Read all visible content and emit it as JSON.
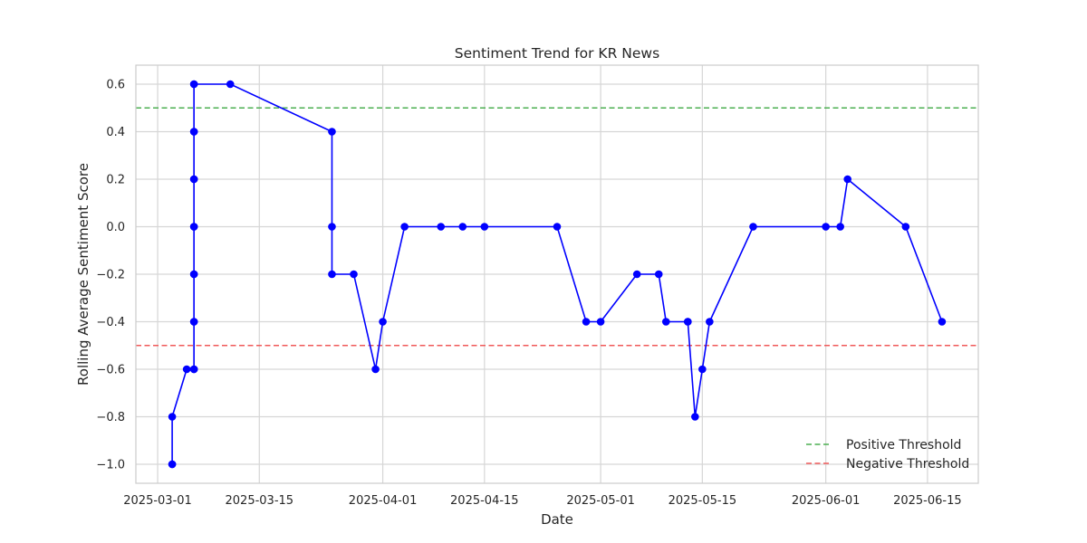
{
  "chart_data": {
    "type": "line",
    "title": "Sentiment Trend for KR News",
    "xlabel": "Date",
    "ylabel": "Rolling Average Sentiment Score",
    "xlim": [
      "2025-02-26",
      "2025-06-22"
    ],
    "ylim": [
      -1.08,
      0.68
    ],
    "x_ticks": [
      "2025-03-01",
      "2025-03-15",
      "2025-04-01",
      "2025-04-15",
      "2025-05-01",
      "2025-05-15",
      "2025-06-01",
      "2025-06-15"
    ],
    "y_ticks": [
      -1.0,
      -0.8,
      -0.6,
      -0.4,
      -0.2,
      0.0,
      0.2,
      0.4,
      0.6
    ],
    "y_tick_labels": [
      "−1.0",
      "−0.8",
      "−0.6",
      "−0.4",
      "−0.2",
      "0.0",
      "0.2",
      "0.4",
      "0.6"
    ],
    "grid": true,
    "legend_position": "lower-right",
    "series": [
      {
        "color": "#0000ff",
        "marker": "circle",
        "points": [
          {
            "x": "2025-03-03",
            "y": -1.0
          },
          {
            "x": "2025-03-03",
            "y": -1.0
          },
          {
            "x": "2025-03-03",
            "y": -0.8
          },
          {
            "x": "2025-03-05",
            "y": -0.6
          },
          {
            "x": "2025-03-06",
            "y": -0.6
          },
          {
            "x": "2025-03-06",
            "y": -0.4
          },
          {
            "x": "2025-03-06",
            "y": -0.2
          },
          {
            "x": "2025-03-06",
            "y": 0.0
          },
          {
            "x": "2025-03-06",
            "y": 0.2
          },
          {
            "x": "2025-03-06",
            "y": 0.4
          },
          {
            "x": "2025-03-06",
            "y": 0.6
          },
          {
            "x": "2025-03-06",
            "y": 0.4
          },
          {
            "x": "2025-03-06",
            "y": 0.2
          },
          {
            "x": "2025-03-06",
            "y": 0.0
          },
          {
            "x": "2025-03-06",
            "y": -0.2
          },
          {
            "x": "2025-03-06",
            "y": -0.4
          },
          {
            "x": "2025-03-06",
            "y": -0.6
          },
          {
            "x": "2025-03-06",
            "y": 0.6
          },
          {
            "x": "2025-03-11",
            "y": 0.6
          },
          {
            "x": "2025-03-25",
            "y": 0.4
          },
          {
            "x": "2025-03-25",
            "y": 0.0
          },
          {
            "x": "2025-03-25",
            "y": -0.2
          },
          {
            "x": "2025-03-28",
            "y": -0.2
          },
          {
            "x": "2025-03-31",
            "y": -0.6
          },
          {
            "x": "2025-04-01",
            "y": -0.4
          },
          {
            "x": "2025-04-04",
            "y": 0.0
          },
          {
            "x": "2025-04-09",
            "y": 0.0
          },
          {
            "x": "2025-04-12",
            "y": 0.0
          },
          {
            "x": "2025-04-15",
            "y": 0.0
          },
          {
            "x": "2025-04-25",
            "y": 0.0
          },
          {
            "x": "2025-04-29",
            "y": -0.4
          },
          {
            "x": "2025-05-01",
            "y": -0.4
          },
          {
            "x": "2025-05-06",
            "y": -0.2
          },
          {
            "x": "2025-05-09",
            "y": -0.2
          },
          {
            "x": "2025-05-10",
            "y": -0.4
          },
          {
            "x": "2025-05-13",
            "y": -0.4
          },
          {
            "x": "2025-05-13",
            "y": -0.4
          },
          {
            "x": "2025-05-14",
            "y": -0.8
          },
          {
            "x": "2025-05-15",
            "y": -0.6
          },
          {
            "x": "2025-05-16",
            "y": -0.4
          },
          {
            "x": "2025-05-22",
            "y": 0.0
          },
          {
            "x": "2025-06-01",
            "y": 0.0
          },
          {
            "x": "2025-06-03",
            "y": 0.0
          },
          {
            "x": "2025-06-04",
            "y": 0.2
          },
          {
            "x": "2025-06-12",
            "y": 0.0
          },
          {
            "x": "2025-06-17",
            "y": -0.4
          }
        ]
      }
    ],
    "thresholds": [
      {
        "name": "Positive Threshold",
        "y": 0.5,
        "color": "#4caf50",
        "style": "dashed"
      },
      {
        "name": "Negative Threshold",
        "y": -0.5,
        "color": "#f05a5a",
        "style": "dashed"
      }
    ]
  }
}
